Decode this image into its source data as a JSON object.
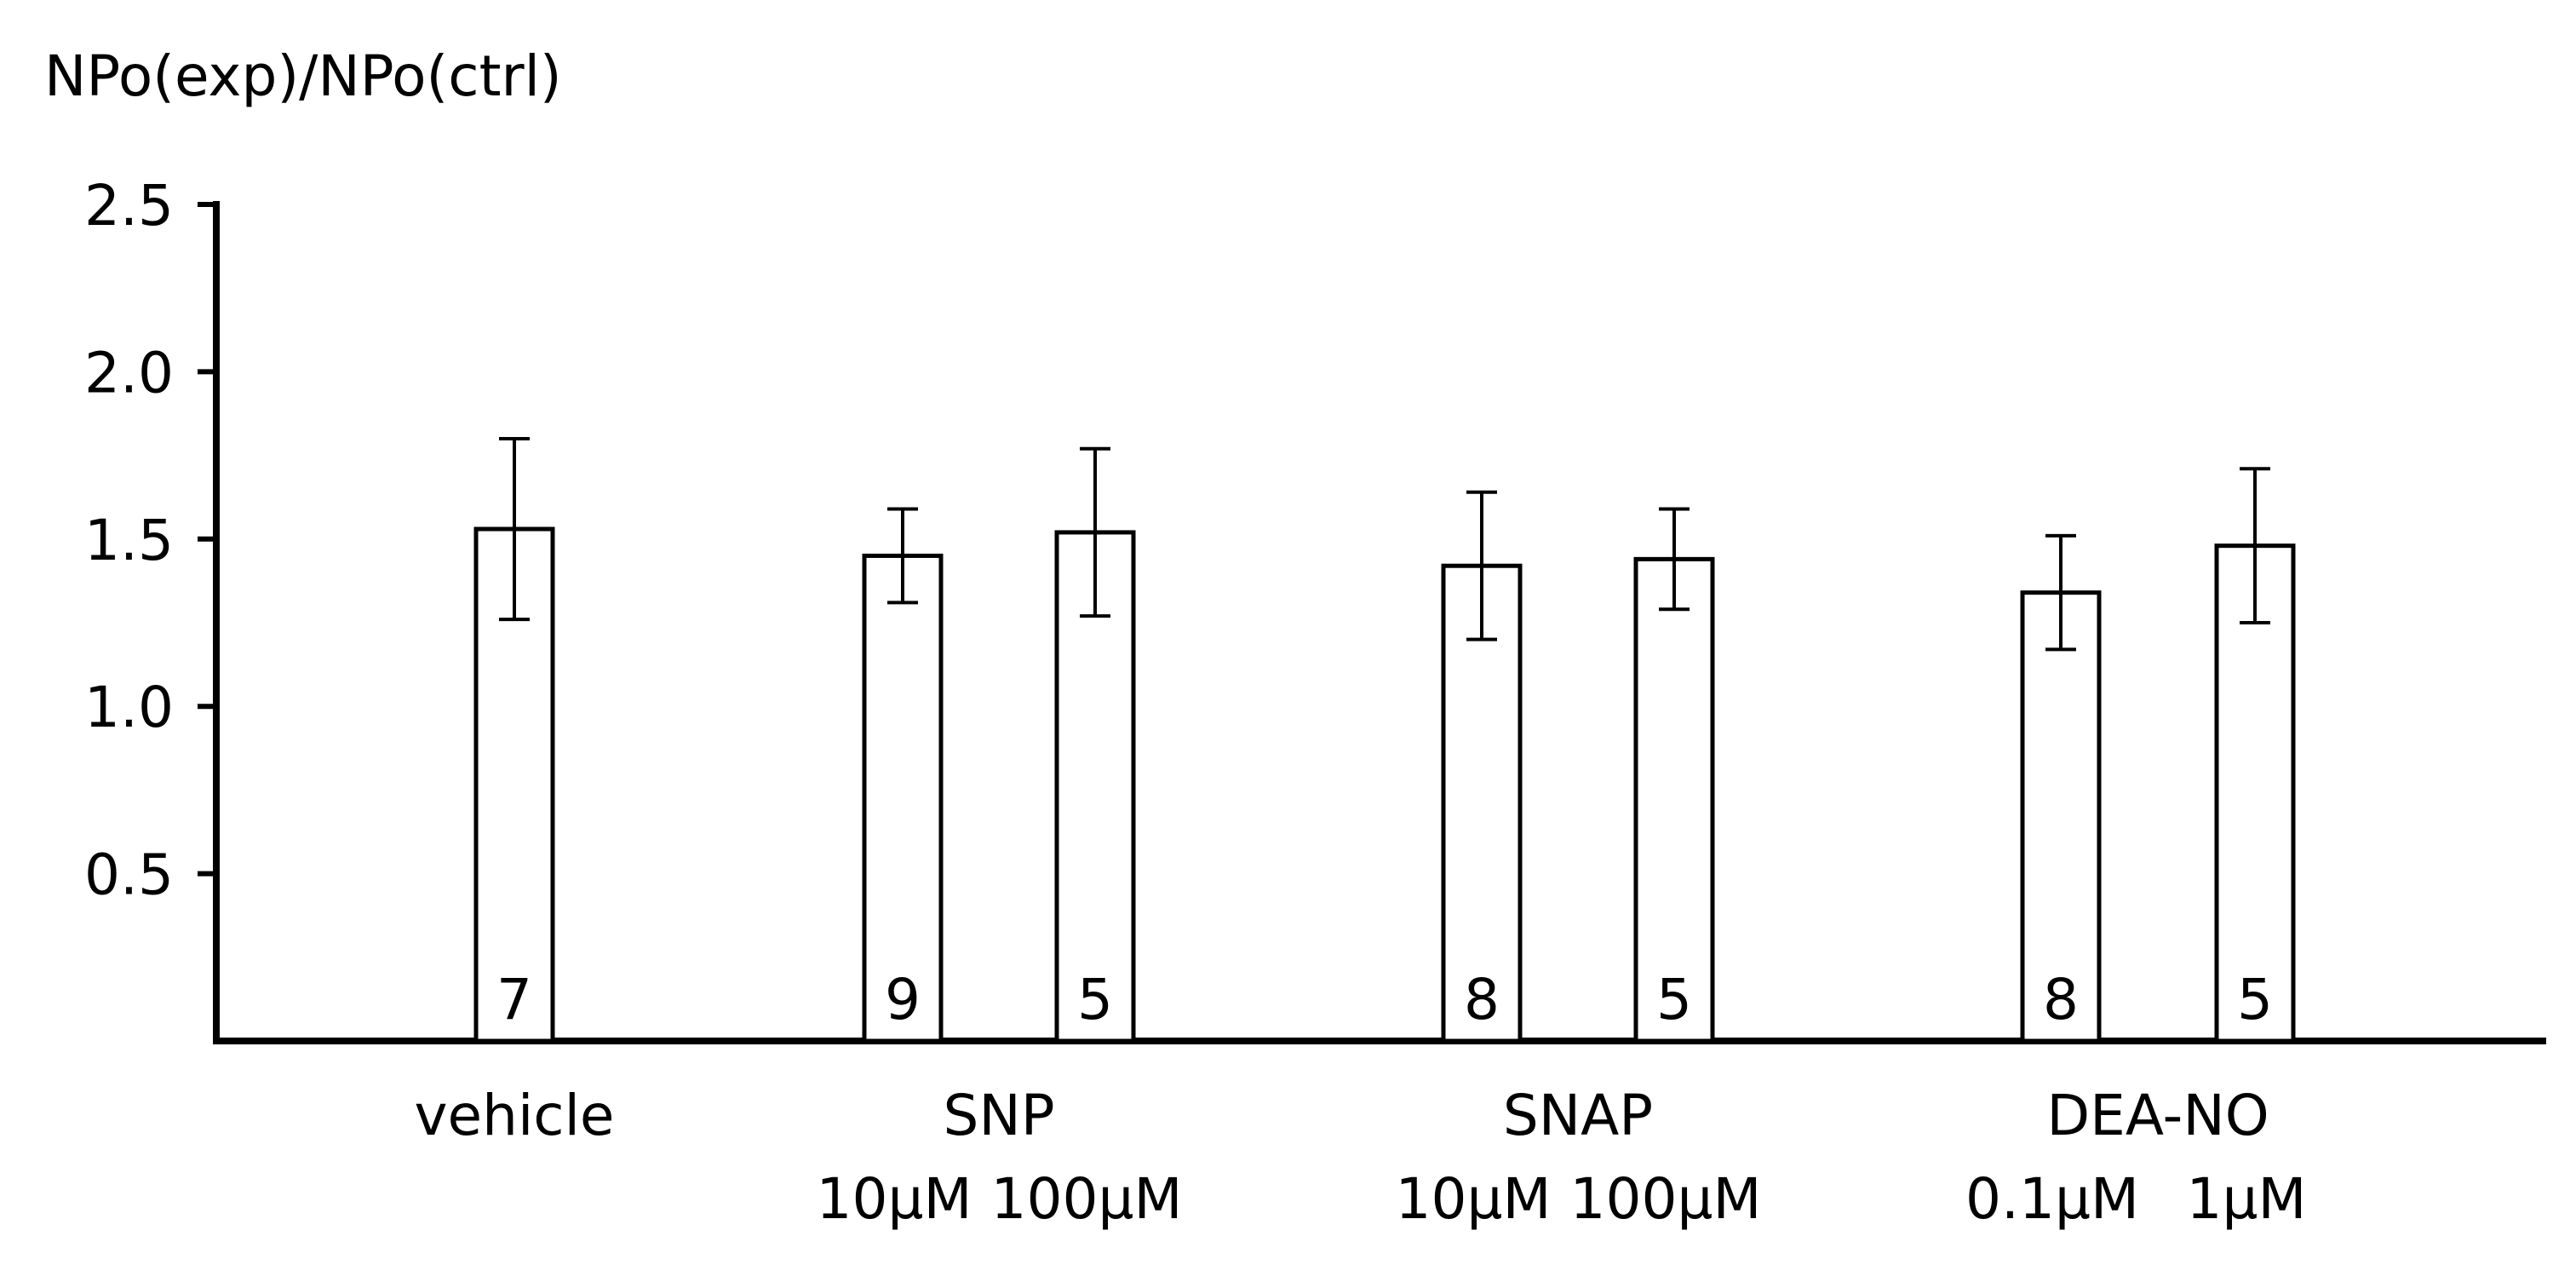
{
  "chart_data": {
    "type": "bar",
    "title": "",
    "ylabel": "NPo(exp)/NPo(ctrl)",
    "xlabel": "",
    "ylim": [
      0,
      2.5
    ],
    "yticks": [
      "0.5",
      "1.0",
      "1.5",
      "2.0",
      "2.5"
    ],
    "grid": false,
    "legend": "none",
    "bar_fill": "#ffffff",
    "bar_stroke": "#000000",
    "groups": [
      {
        "label": "vehicle",
        "bars": [
          0
        ]
      },
      {
        "label": "SNP",
        "bars": [
          1,
          2
        ]
      },
      {
        "label": "SNAP",
        "bars": [
          3,
          4
        ]
      },
      {
        "label": "DEA-NO",
        "bars": [
          5,
          6
        ]
      }
    ],
    "bars": [
      {
        "sublabel": "",
        "value": 1.53,
        "error": 0.27,
        "n": "7"
      },
      {
        "sublabel": "10μM",
        "value": 1.45,
        "error": 0.14,
        "n": "9"
      },
      {
        "sublabel": "100μM",
        "value": 1.52,
        "error": 0.25,
        "n": "5"
      },
      {
        "sublabel": "10μM",
        "value": 1.42,
        "error": 0.22,
        "n": "8"
      },
      {
        "sublabel": "100μM",
        "value": 1.44,
        "error": 0.15,
        "n": "5"
      },
      {
        "sublabel": "0.1μM",
        "value": 1.34,
        "error": 0.17,
        "n": "8"
      },
      {
        "sublabel": "1μM",
        "value": 1.48,
        "error": 0.23,
        "n": "5"
      }
    ]
  }
}
